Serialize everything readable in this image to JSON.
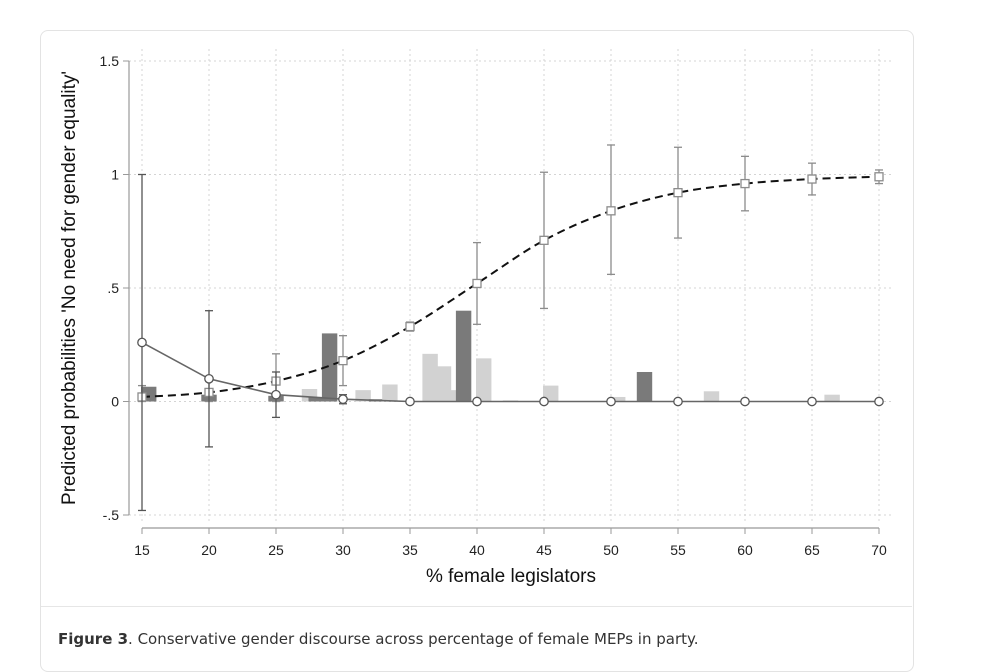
{
  "chart_data": {
    "type": "line",
    "xlabel": "% female legislators",
    "ylabel": "Predicted probabilities 'No need for gender equality'",
    "xlim": [
      15,
      70
    ],
    "ylim": [
      -0.5,
      1.5
    ],
    "xticks": [
      "15",
      "20",
      "25",
      "30",
      "35",
      "40",
      "45",
      "50",
      "55",
      "60",
      "65",
      "70"
    ],
    "yticks": [
      {
        "value": -0.5,
        "label": "-.5"
      },
      {
        "value": 0,
        "label": "0"
      },
      {
        "value": 0.5,
        "label": ".5"
      },
      {
        "value": 1,
        "label": "1"
      },
      {
        "value": 1.5,
        "label": "1.5"
      }
    ],
    "grid": true,
    "series": [
      {
        "style": "dashed-square",
        "color": "#111111",
        "x": [
          15,
          20,
          25,
          30,
          35,
          40,
          45,
          50,
          55,
          60,
          65,
          70
        ],
        "y": [
          0.02,
          0.04,
          0.09,
          0.18,
          0.33,
          0.52,
          0.71,
          0.84,
          0.92,
          0.96,
          0.98,
          0.99
        ],
        "ci_low": [
          0.0,
          0.0,
          0.0,
          0.07,
          0.31,
          0.34,
          0.41,
          0.56,
          0.72,
          0.84,
          0.91,
          0.96
        ],
        "ci_high": [
          0.07,
          0.1,
          0.21,
          0.29,
          0.35,
          0.7,
          1.01,
          1.13,
          1.12,
          1.08,
          1.05,
          1.02
        ]
      },
      {
        "style": "solid-circle",
        "color": "#666666",
        "x": [
          15,
          20,
          25,
          30,
          35,
          40,
          45,
          50,
          55,
          60,
          65,
          70
        ],
        "y": [
          0.26,
          0.1,
          0.03,
          0.01,
          0.0,
          0.0,
          0.0,
          0.0,
          0.0,
          0.0,
          0.0,
          0.0
        ],
        "ci_low": [
          -0.48,
          -0.2,
          -0.07,
          -0.01,
          0.0,
          0.0,
          0.0,
          0.0,
          0.0,
          0.0,
          0.0,
          0.0
        ],
        "ci_high": [
          1.0,
          0.4,
          0.13,
          0.03,
          0.0,
          0.0,
          0.0,
          0.0,
          0.0,
          0.0,
          0.0,
          0.0
        ]
      }
    ],
    "histogram": {
      "bin_width": 1.15,
      "bars": [
        {
          "x": 15.5,
          "h": 0.065,
          "shade": "dark"
        },
        {
          "x": 20.0,
          "h": 0.03,
          "shade": "dark"
        },
        {
          "x": 25.0,
          "h": 0.025,
          "shade": "dark"
        },
        {
          "x": 27.5,
          "h": 0.055,
          "shade": "light"
        },
        {
          "x": 28.0,
          "h": 0.02,
          "shade": "dark"
        },
        {
          "x": 29.0,
          "h": 0.3,
          "shade": "dark"
        },
        {
          "x": 31.5,
          "h": 0.05,
          "shade": "light"
        },
        {
          "x": 32.5,
          "h": 0.01,
          "shade": "dark"
        },
        {
          "x": 33.5,
          "h": 0.075,
          "shade": "light"
        },
        {
          "x": 36.5,
          "h": 0.21,
          "shade": "light"
        },
        {
          "x": 37.5,
          "h": 0.155,
          "shade": "light"
        },
        {
          "x": 38.0,
          "h": 0.05,
          "shade": "light"
        },
        {
          "x": 39.0,
          "h": 0.4,
          "shade": "dark"
        },
        {
          "x": 40.5,
          "h": 0.19,
          "shade": "light"
        },
        {
          "x": 42.5,
          "h": 0.005,
          "shade": "light"
        },
        {
          "x": 45.5,
          "h": 0.07,
          "shade": "light"
        },
        {
          "x": 50.5,
          "h": 0.02,
          "shade": "light"
        },
        {
          "x": 52.5,
          "h": 0.13,
          "shade": "dark"
        },
        {
          "x": 57.5,
          "h": 0.045,
          "shade": "light"
        },
        {
          "x": 66.5,
          "h": 0.03,
          "shade": "light"
        }
      ],
      "colors": {
        "dark": "#7a7a7a",
        "light": "#d2d2d2"
      }
    }
  },
  "caption": {
    "label": "Figure 3",
    "text": ". Conservative gender discourse across percentage of female MEPs in party."
  }
}
